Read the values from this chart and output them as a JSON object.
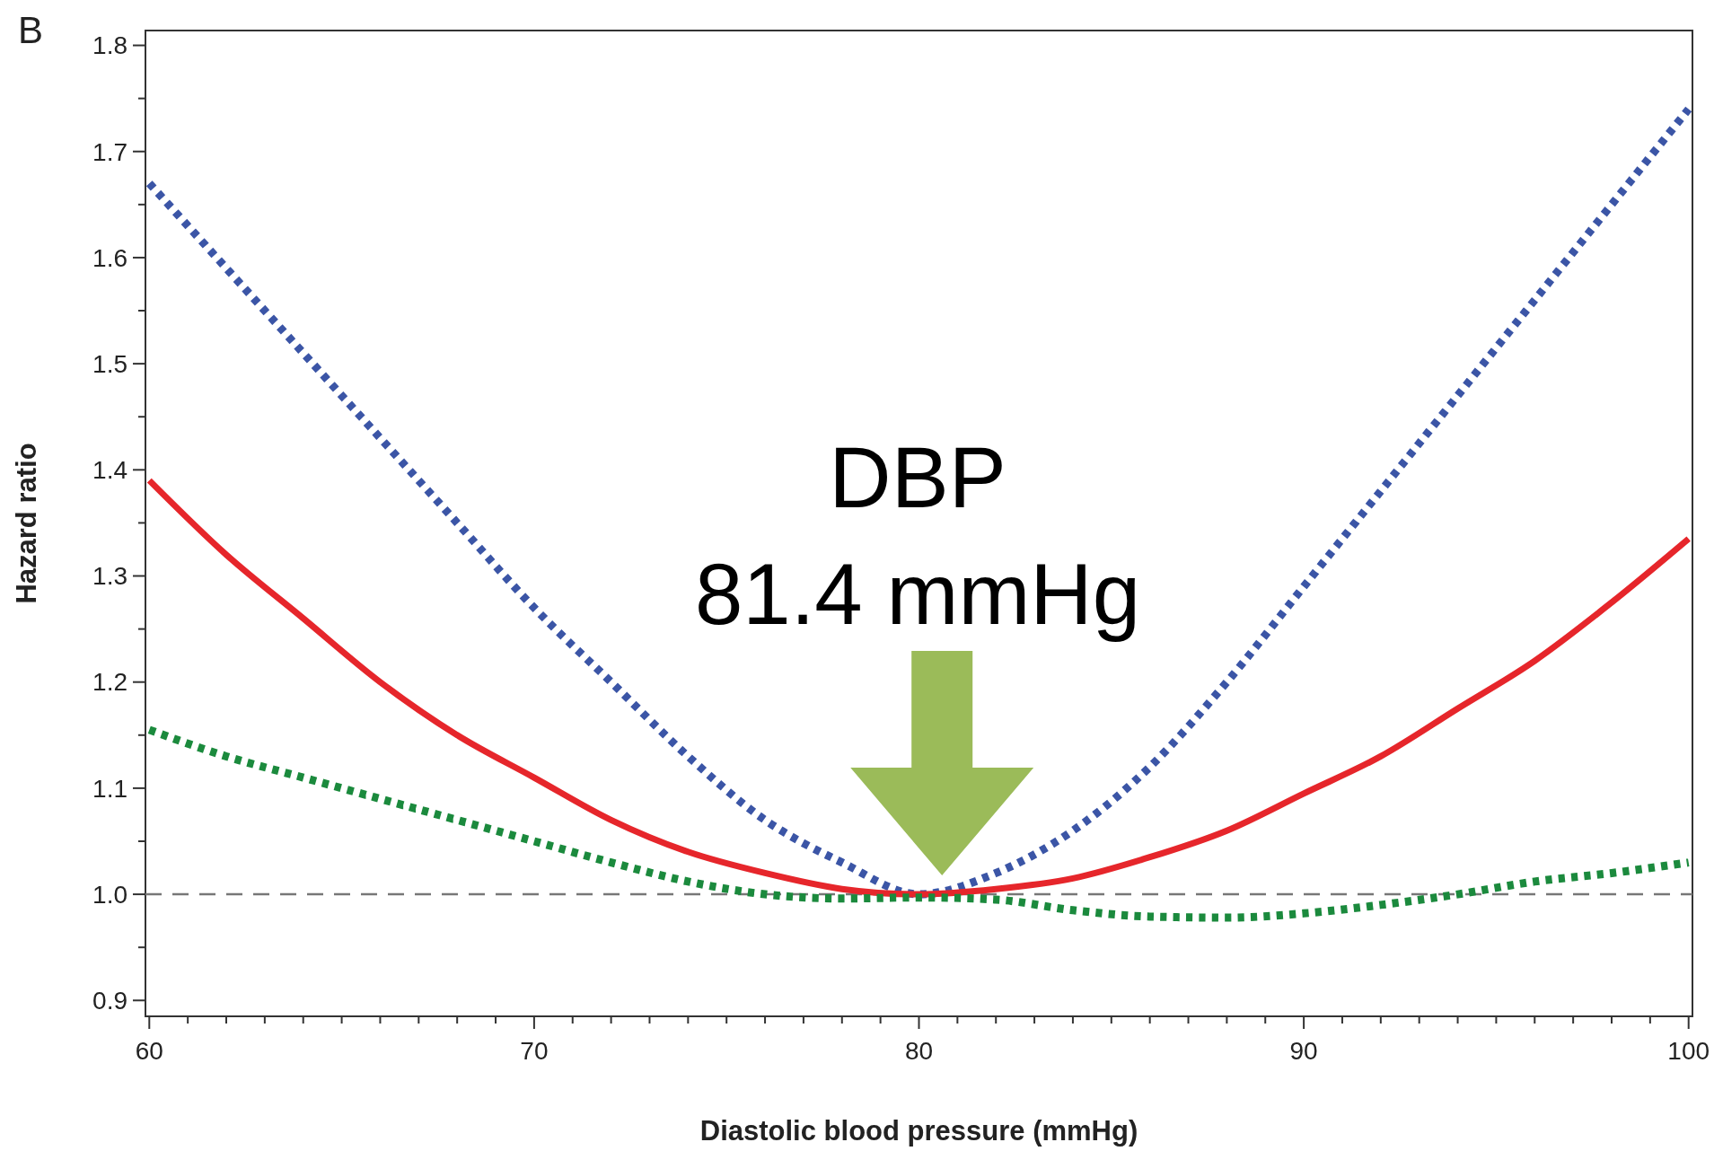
{
  "chart_data": {
    "type": "line",
    "xlabel": "Diastolic blood pressure (mmHg)",
    "ylabel": "Hazard ratio",
    "x": [
      60,
      62,
      64,
      66,
      68,
      70,
      72,
      74,
      76,
      78,
      80,
      82,
      84,
      86,
      88,
      90,
      92,
      94,
      96,
      98,
      100
    ],
    "series": [
      {
        "color": "#3b55a6",
        "line_style": "dotted",
        "values": [
          1.67,
          1.59,
          1.51,
          1.43,
          1.35,
          1.27,
          1.2,
          1.13,
          1.07,
          1.03,
          1.0,
          1.02,
          1.06,
          1.12,
          1.2,
          1.29,
          1.38,
          1.47,
          1.56,
          1.65,
          1.74
        ]
      },
      {
        "color": "#e6262b",
        "line_style": "solid",
        "values": [
          1.39,
          1.32,
          1.26,
          1.2,
          1.15,
          1.11,
          1.07,
          1.04,
          1.02,
          1.005,
          1.0,
          1.005,
          1.015,
          1.035,
          1.06,
          1.095,
          1.13,
          1.175,
          1.22,
          1.275,
          1.335
        ]
      },
      {
        "color": "#1b8a3d",
        "line_style": "dotted",
        "values": [
          1.155,
          1.13,
          1.11,
          1.09,
          1.07,
          1.05,
          1.03,
          1.012,
          1.0,
          0.996,
          0.997,
          0.995,
          0.985,
          0.979,
          0.978,
          0.982,
          0.99,
          1.0,
          1.012,
          1.02,
          1.03
        ]
      }
    ],
    "xlim": [
      59.9,
      100.1
    ],
    "ylim": [
      0.885,
      1.814
    ],
    "xticks": [
      60,
      {
        "value": 61,
        "label": null
      },
      {
        "value": 62,
        "label": null
      },
      {
        "value": 63,
        "label": null
      },
      {
        "value": 64,
        "label": null
      },
      {
        "value": 65,
        "label": null
      },
      {
        "value": 66,
        "label": null
      },
      {
        "value": 67,
        "label": null
      },
      {
        "value": 68,
        "label": null
      },
      {
        "value": 69,
        "label": null
      },
      70,
      {
        "value": 71,
        "label": null
      },
      {
        "value": 72,
        "label": null
      },
      {
        "value": 73,
        "label": null
      },
      {
        "value": 74,
        "label": null
      },
      {
        "value": 75,
        "label": null
      },
      {
        "value": 76,
        "label": null
      },
      {
        "value": 77,
        "label": null
      },
      {
        "value": 78,
        "label": null
      },
      {
        "value": 79,
        "label": null
      },
      80,
      {
        "value": 81,
        "label": null
      },
      {
        "value": 82,
        "label": null
      },
      {
        "value": 83,
        "label": null
      },
      {
        "value": 84,
        "label": null
      },
      {
        "value": 85,
        "label": null
      },
      {
        "value": 86,
        "label": null
      },
      {
        "value": 87,
        "label": null
      },
      {
        "value": 88,
        "label": null
      },
      {
        "value": 89,
        "label": null
      },
      90,
      {
        "value": 91,
        "label": null
      },
      {
        "value": 92,
        "label": null
      },
      {
        "value": 93,
        "label": null
      },
      {
        "value": 94,
        "label": null
      },
      {
        "value": 95,
        "label": null
      },
      {
        "value": 96,
        "label": null
      },
      {
        "value": 97,
        "label": null
      },
      {
        "value": 98,
        "label": null
      },
      {
        "value": 99,
        "label": null
      },
      100
    ],
    "yticks": [
      {
        "value": 0.9,
        "label": "0.9"
      },
      {
        "value": 0.95,
        "label": null
      },
      {
        "value": 1.0,
        "label": "1.0"
      },
      {
        "value": 1.05,
        "label": null
      },
      {
        "value": 1.1,
        "label": "1.1"
      },
      {
        "value": 1.15,
        "label": null
      },
      {
        "value": 1.2,
        "label": "1.2"
      },
      {
        "value": 1.25,
        "label": null
      },
      {
        "value": 1.3,
        "label": "1.3"
      },
      {
        "value": 1.35,
        "label": null
      },
      {
        "value": 1.4,
        "label": "1.4"
      },
      {
        "value": 1.45,
        "label": null
      },
      {
        "value": 1.5,
        "label": "1.5"
      },
      {
        "value": 1.55,
        "label": null
      },
      {
        "value": 1.6,
        "label": "1.6"
      },
      {
        "value": 1.65,
        "label": null
      },
      {
        "value": 1.7,
        "label": "1.7"
      },
      {
        "value": 1.75,
        "label": null
      },
      {
        "value": 1.8,
        "label": "1.8"
      }
    ],
    "ref_lines": [
      {
        "axis": "y",
        "value": 1.0,
        "color": "#777777",
        "line_style": "dashed"
      }
    ],
    "annotations": [
      "B",
      "DBP",
      "81.4 mmHg"
    ],
    "grid": false
  }
}
